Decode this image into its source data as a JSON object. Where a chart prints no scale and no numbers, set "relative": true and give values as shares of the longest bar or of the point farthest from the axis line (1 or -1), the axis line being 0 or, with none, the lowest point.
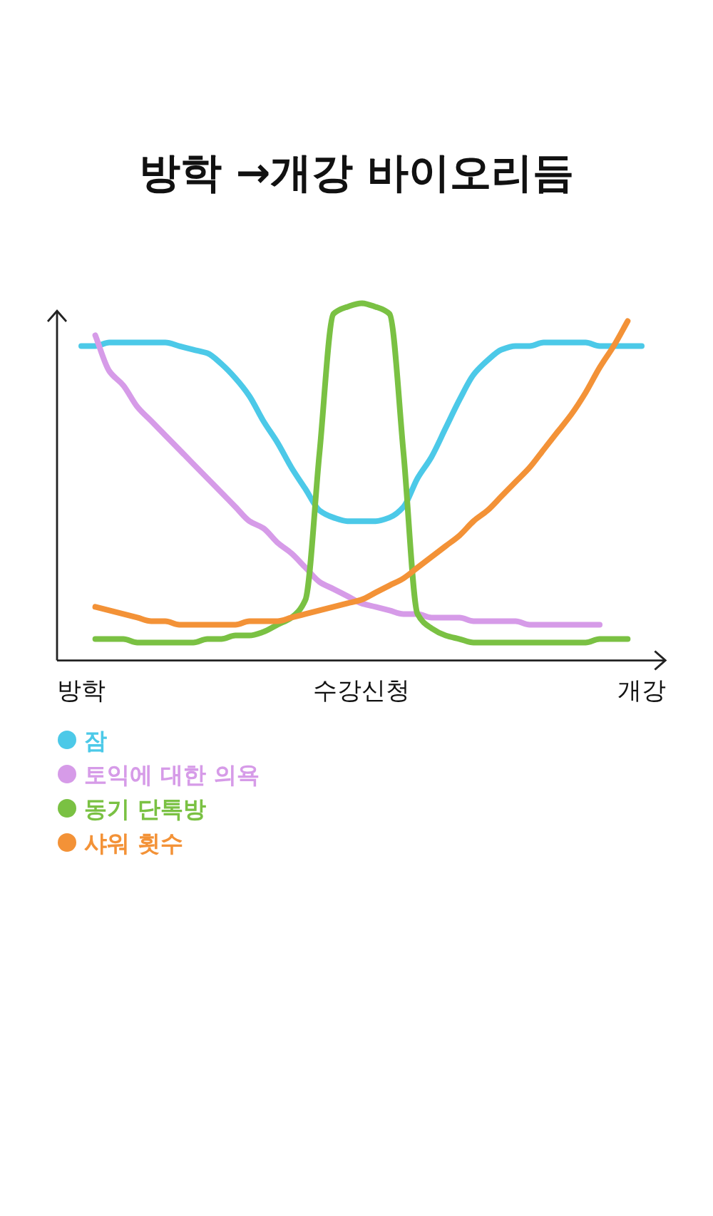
{
  "chart_data": {
    "type": "line",
    "title": "방학 →개강 바이오리듬",
    "relative": true,
    "categories": [
      "방학",
      null,
      null,
      null,
      null,
      null,
      null,
      null,
      null,
      null,
      null,
      null,
      null,
      null,
      null,
      null,
      null,
      null,
      null,
      null,
      "수강신청",
      null,
      null,
      null,
      null,
      null,
      null,
      null,
      null,
      null,
      null,
      null,
      null,
      null,
      null,
      null,
      null,
      null,
      null,
      null,
      "개강"
    ],
    "legend": "bottom left",
    "series": [
      {
        "name": "잠",
        "color": "#4cc9e8",
        "values": [
          0.88,
          0.88,
          0.89,
          0.89,
          0.89,
          0.89,
          0.89,
          0.88,
          0.87,
          0.86,
          0.83,
          0.79,
          0.74,
          0.67,
          0.61,
          0.54,
          0.48,
          0.42,
          0.4,
          0.39,
          0.39,
          0.39,
          0.4,
          0.43,
          0.51,
          0.57,
          0.65,
          0.73,
          0.8,
          0.84,
          0.87,
          0.88,
          0.88,
          0.89,
          0.89,
          0.89,
          0.89,
          0.88,
          0.88,
          0.88,
          0.88
        ]
      },
      {
        "name": "토익에 대한 의욕",
        "color": "#d69be8",
        "values": [
          null,
          0.91,
          0.81,
          0.77,
          0.71,
          0.67,
          0.63,
          0.59,
          0.55,
          0.51,
          0.47,
          0.43,
          0.39,
          0.37,
          0.33,
          0.3,
          0.26,
          0.22,
          0.2,
          0.18,
          0.16,
          0.15,
          0.14,
          0.13,
          0.13,
          0.12,
          0.12,
          0.12,
          0.11,
          0.11,
          0.11,
          0.11,
          0.1,
          0.1,
          0.1,
          0.1,
          0.1,
          0.1,
          null,
          null,
          null
        ]
      },
      {
        "name": "동기 단톡방",
        "color": "#7ac143",
        "values": [
          null,
          0.06,
          0.06,
          0.06,
          0.05,
          0.05,
          0.05,
          0.05,
          0.05,
          0.06,
          0.06,
          0.07,
          0.07,
          0.08,
          0.1,
          0.12,
          0.17,
          0.58,
          0.97,
          0.99,
          1,
          0.99,
          0.97,
          0.58,
          0.13,
          0.09,
          0.07,
          0.06,
          0.05,
          0.05,
          0.05,
          0.05,
          0.05,
          0.05,
          0.05,
          0.05,
          0.05,
          0.06,
          0.06,
          0.06,
          null
        ]
      },
      {
        "name": "샤워 횟수",
        "color": "#f39237",
        "values": [
          null,
          0.15,
          0.14,
          0.13,
          0.12,
          0.11,
          0.11,
          0.1,
          0.1,
          0.1,
          0.1,
          0.1,
          0.11,
          0.11,
          0.11,
          0.12,
          0.13,
          0.14,
          0.15,
          0.16,
          0.17,
          0.19,
          0.21,
          0.23,
          0.26,
          0.29,
          0.32,
          0.35,
          0.39,
          0.42,
          0.46,
          0.5,
          0.54,
          0.59,
          0.64,
          0.69,
          0.75,
          0.82,
          0.88,
          0.95,
          null
        ]
      }
    ]
  }
}
